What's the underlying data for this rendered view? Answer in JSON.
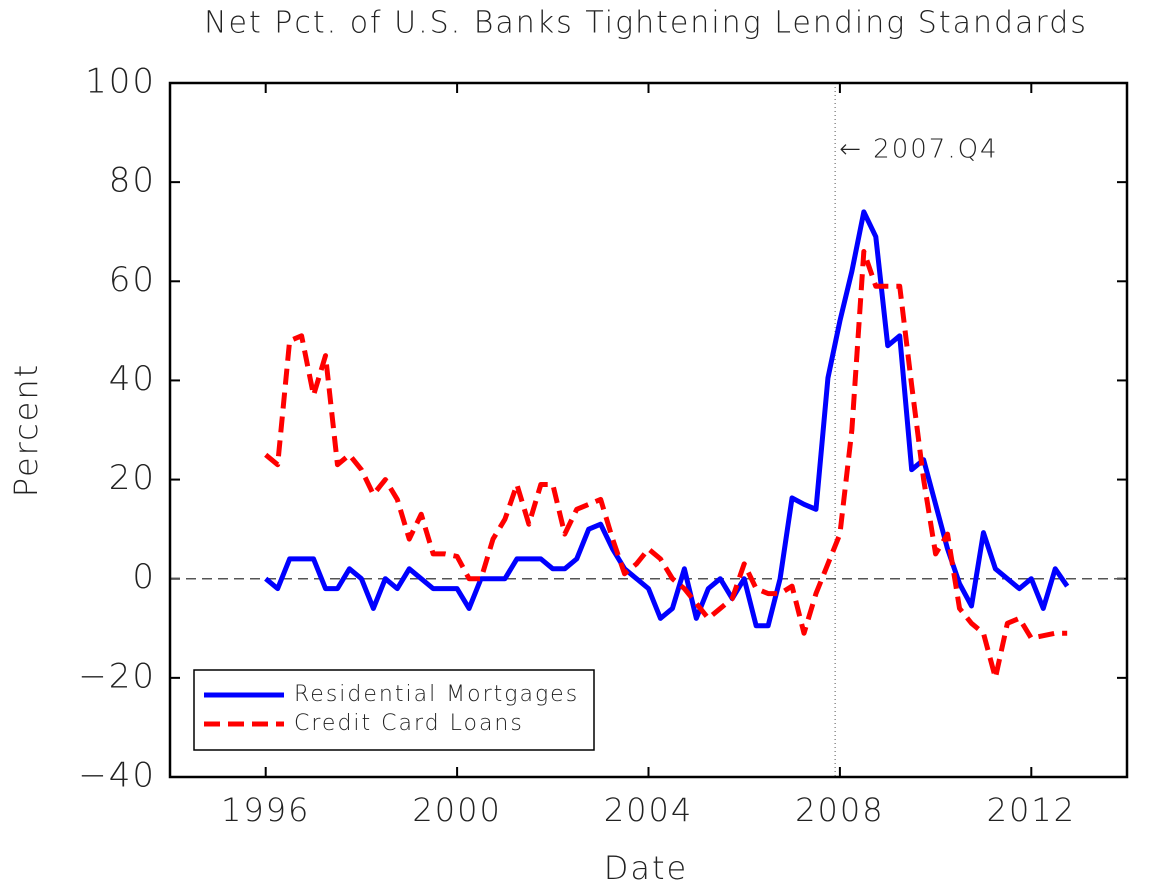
{
  "chart_data": {
    "type": "line",
    "title": "Net Pct. of U.S. Banks Tightening Lending Standards",
    "x_label": "Date",
    "y_label": "Percent",
    "x": [
      1996,
      1996.25,
      1996.5,
      1996.75,
      1997,
      1997.25,
      1997.5,
      1997.75,
      1998,
      1998.25,
      1998.5,
      1998.75,
      1999,
      1999.25,
      1999.5,
      1999.75,
      2000,
      2000.25,
      2000.5,
      2000.75,
      2001,
      2001.25,
      2001.5,
      2001.75,
      2002,
      2002.25,
      2002.5,
      2002.75,
      2003,
      2003.25,
      2003.5,
      2003.75,
      2004,
      2004.25,
      2004.5,
      2004.75,
      2005,
      2005.25,
      2005.5,
      2005.75,
      2006,
      2006.25,
      2006.5,
      2006.75,
      2007,
      2007.25,
      2007.5,
      2007.75,
      2008,
      2008.25,
      2008.5,
      2008.75,
      2009,
      2009.25,
      2009.5,
      2009.75,
      2010,
      2010.25,
      2010.5,
      2010.75,
      2011,
      2011.25,
      2011.5,
      2011.75,
      2012,
      2012.25,
      2012.5,
      2012.75
    ],
    "series": [
      {
        "name": "Residential Mortgages",
        "color": "#0000ff",
        "dash": false,
        "values": [
          0,
          -2,
          4,
          4,
          4,
          -2,
          -2,
          2,
          0,
          -6,
          0,
          -2,
          2,
          0,
          -2,
          -2,
          -2,
          -6,
          0,
          0,
          0,
          4,
          4,
          4,
          2,
          2,
          4,
          10,
          11,
          6,
          2,
          0,
          -2,
          -8,
          -6,
          2,
          -8,
          -2,
          0,
          -4,
          0,
          -9.5,
          -9.5,
          0,
          16.3,
          15,
          14,
          40.5,
          52,
          62,
          74,
          69,
          47,
          49,
          22,
          24,
          15,
          6,
          -1,
          -5.5,
          9.3,
          2,
          0,
          -2,
          0,
          -6,
          2,
          -1.5
        ]
      },
      {
        "name": "Credit Card Loans",
        "color": "#ff0000",
        "dash": true,
        "values": [
          25,
          23,
          48,
          49,
          37,
          45,
          23,
          25,
          22,
          17,
          20,
          16,
          8,
          13,
          5,
          5,
          4.5,
          0,
          0,
          8,
          12,
          19,
          11,
          19,
          19,
          9,
          14,
          15,
          16,
          8,
          1,
          3,
          6,
          4,
          0,
          -2,
          -5,
          -8,
          -6,
          -4,
          3,
          -2,
          -3,
          -3,
          -1.5,
          -11,
          -3,
          3,
          9,
          30,
          66,
          59,
          59,
          59,
          39,
          20,
          5,
          9,
          -6,
          -9,
          -11,
          -20,
          -9,
          -8,
          -12,
          -11.5,
          -11,
          -11
        ]
      }
    ],
    "xlim": [
      1994,
      2014
    ],
    "xticks": [
      1996,
      2000,
      2004,
      2008,
      2012
    ],
    "ylim": [
      -40,
      100
    ],
    "yticks": [
      {
        "value": -40,
        "label": "−40"
      },
      {
        "value": -20,
        "label": "−20"
      },
      0,
      20,
      40,
      60,
      80,
      100
    ],
    "zero_line": true,
    "annotation": {
      "text": "← 2007.Q4",
      "x": 2007.9
    },
    "legend": "lower-left"
  }
}
